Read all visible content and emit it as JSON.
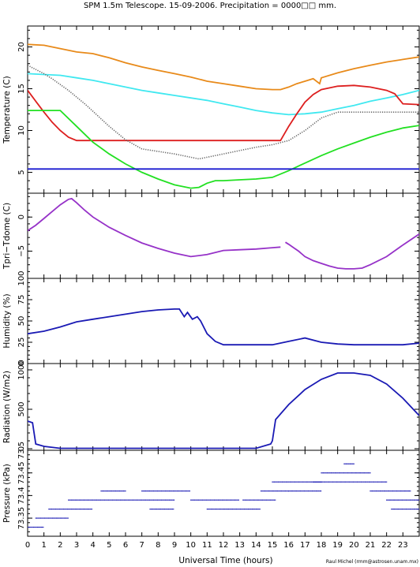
{
  "title": "SPM 1.5m Telescope. 15-09-2006. Precipitation = 0000□□ mm.",
  "xlabel": "Universal Time (hours)",
  "credit": "Raul Michel (rmm@astrosen.unam.mx)",
  "xlim": [
    0,
    24
  ],
  "xticks": [
    "0",
    "1",
    "2",
    "3",
    "4",
    "5",
    "6",
    "7",
    "8",
    "9",
    "10",
    "11",
    "12",
    "13",
    "14",
    "15",
    "16",
    "17",
    "18",
    "19",
    "20",
    "21",
    "22",
    "23"
  ],
  "chart_data": [
    {
      "type": "line",
      "ylabel": "Temperature (C)",
      "ylim": [
        2.5,
        22.5
      ],
      "yticks": [
        "5",
        "10",
        "15",
        "20"
      ],
      "series": [
        {
          "color": "#e88a1a",
          "x": [
            0,
            1,
            2,
            3,
            4,
            5,
            6,
            7,
            8,
            9,
            10,
            11,
            12,
            13,
            14,
            15,
            15.5,
            16,
            16.5,
            17,
            17.5,
            17.9,
            18,
            19,
            20,
            21,
            22,
            23,
            24
          ],
          "y": [
            20.3,
            20.2,
            19.8,
            19.4,
            19.2,
            18.7,
            18.1,
            17.6,
            17.2,
            16.8,
            16.4,
            15.9,
            15.6,
            15.3,
            15.0,
            14.9,
            14.9,
            15.2,
            15.6,
            15.9,
            16.2,
            15.6,
            16.3,
            16.9,
            17.4,
            17.8,
            18.2,
            18.5,
            18.8
          ]
        },
        {
          "color": "#40e8f0",
          "x": [
            0,
            1,
            2,
            3,
            4,
            5,
            6,
            7,
            8,
            9,
            10,
            11,
            12,
            13,
            14,
            15,
            16,
            17,
            18,
            19,
            20,
            21,
            22,
            23,
            24
          ],
          "y": [
            16.8,
            16.7,
            16.6,
            16.3,
            16.0,
            15.6,
            15.2,
            14.8,
            14.5,
            14.2,
            13.9,
            13.6,
            13.2,
            12.8,
            12.4,
            12.1,
            11.9,
            12.0,
            12.2,
            12.6,
            13.0,
            13.5,
            13.9,
            14.3,
            14.8
          ]
        },
        {
          "color": "#dd1f1f",
          "x": [
            0,
            0.5,
            1,
            1.5,
            2,
            2.5,
            3,
            4,
            5,
            6,
            7,
            8,
            9,
            10,
            11,
            12,
            13,
            14,
            15,
            15.5,
            16,
            16.5,
            17,
            17.5,
            18,
            19,
            20,
            21,
            22,
            22.5,
            23,
            24
          ],
          "y": [
            14.8,
            13.5,
            12.2,
            11.0,
            10.0,
            9.2,
            8.8,
            8.8,
            8.8,
            8.8,
            8.8,
            8.8,
            8.8,
            8.8,
            8.8,
            8.8,
            8.8,
            8.8,
            8.8,
            8.8,
            10.5,
            12.0,
            13.4,
            14.3,
            14.9,
            15.3,
            15.4,
            15.2,
            14.8,
            14.4,
            13.2,
            13.1
          ]
        },
        {
          "color": "#646464",
          "x": [
            0,
            0.5,
            1,
            1.5,
            2,
            2.5,
            3,
            3.5,
            4,
            5,
            6,
            7,
            8,
            9,
            10,
            10.5,
            11,
            12,
            13,
            14,
            15,
            16,
            17,
            18,
            19,
            20,
            21,
            22,
            23,
            24
          ],
          "y": [
            17.8,
            17.3,
            16.8,
            16.2,
            15.5,
            14.8,
            14.0,
            13.2,
            12.3,
            10.5,
            8.9,
            7.8,
            7.5,
            7.2,
            6.8,
            6.6,
            6.8,
            7.2,
            7.6,
            8.0,
            8.3,
            8.8,
            10.0,
            11.5,
            12.2,
            12.2,
            12.2,
            12.2,
            12.2,
            12.2
          ]
        },
        {
          "color": "#22e022",
          "x": [
            0,
            1,
            2,
            3,
            4,
            5,
            6,
            7,
            8,
            9,
            10,
            10.5,
            11,
            11.5,
            12,
            13,
            14,
            15,
            16,
            17,
            18,
            19,
            20,
            21,
            22,
            23,
            24
          ],
          "y": [
            12.4,
            12.4,
            12.4,
            10.5,
            8.6,
            7.2,
            6.0,
            5.0,
            4.2,
            3.5,
            3.1,
            3.2,
            3.7,
            4.0,
            4.0,
            4.1,
            4.2,
            4.4,
            5.2,
            6.1,
            7.0,
            7.8,
            8.5,
            9.2,
            9.8,
            10.3,
            10.6
          ]
        },
        {
          "color": "#1a1ad0",
          "x": [
            0,
            24
          ],
          "y": [
            5.4,
            5.4
          ]
        }
      ]
    },
    {
      "type": "line",
      "ylabel": "Tpri−Tdome (C)",
      "ylim": [
        -9,
        3.5
      ],
      "yticks": [
        "−5",
        "0"
      ],
      "series": [
        {
          "color": "#9632c8",
          "x": [
            0,
            0.5,
            1,
            1.5,
            2,
            2.5,
            2.7,
            3,
            3.5,
            4,
            5,
            6,
            7,
            8,
            9,
            10,
            11,
            12,
            13,
            14,
            15,
            15.5
          ],
          "y": [
            -2.0,
            -1.2,
            -0.2,
            0.8,
            1.8,
            2.6,
            2.7,
            2.1,
            1.0,
            0.0,
            -1.5,
            -2.7,
            -3.8,
            -4.6,
            -5.3,
            -5.8,
            -5.5,
            -4.9,
            -4.8,
            -4.7,
            -4.5,
            -4.4
          ]
        },
        {
          "color": "#9632c8",
          "x": [
            15.8,
            16,
            16.3,
            16.6,
            17,
            17.5,
            18,
            18.5,
            19,
            19.5,
            20,
            20.5,
            21,
            22,
            23,
            24
          ],
          "y": [
            -3.7,
            -4.0,
            -4.5,
            -5.0,
            -5.8,
            -6.4,
            -6.8,
            -7.2,
            -7.5,
            -7.6,
            -7.6,
            -7.5,
            -7.0,
            -5.8,
            -4.1,
            -2.5
          ]
        }
      ]
    },
    {
      "type": "line",
      "ylabel": "Humidity (%)",
      "ylim": [
        0,
        100
      ],
      "yticks": [
        "0",
        "25",
        "50",
        "75",
        "100"
      ],
      "series": [
        {
          "color": "#1a1ab4",
          "x": [
            0,
            1,
            2,
            3,
            4,
            5,
            6,
            7,
            8,
            9,
            9.3,
            9.6,
            9.8,
            10.1,
            10.4,
            10.6,
            11,
            11.5,
            12,
            13,
            14,
            15,
            16,
            17,
            18,
            19,
            20,
            21,
            22,
            23,
            24
          ],
          "y": [
            35,
            38,
            43,
            49,
            52,
            55,
            58,
            61,
            63,
            64,
            64,
            55,
            60,
            52,
            55,
            50,
            35,
            26,
            22,
            22,
            22,
            22,
            26,
            30,
            25,
            23,
            22,
            22,
            22,
            22,
            24
          ]
        }
      ]
    },
    {
      "type": "line",
      "ylabel": "Radiation (W/m2)",
      "ylim": [
        -20,
        1080
      ],
      "yticks": [
        "0",
        "500",
        "1000"
      ],
      "series": [
        {
          "color": "#1a1ab4",
          "x": [
            0,
            0.3,
            0.5,
            1,
            2,
            4,
            6,
            8,
            10,
            12,
            14,
            14.9,
            15,
            15.2,
            16,
            17,
            18,
            19,
            20,
            21,
            22,
            23,
            24
          ],
          "y": [
            350,
            330,
            60,
            30,
            5,
            5,
            5,
            5,
            5,
            5,
            5,
            60,
            100,
            370,
            560,
            750,
            880,
            960,
            960,
            930,
            820,
            640,
            420
          ]
        }
      ]
    },
    {
      "type": "scatter",
      "ylabel": "Pressure (kPa)",
      "ylim": [
        73.31,
        73.5
      ],
      "yticks": [
        "73.3",
        "73.35",
        "73.4",
        "73.45",
        "73.5"
      ],
      "ytick_values": [
        73.3,
        73.35,
        73.4,
        73.45,
        73.5
      ],
      "series": [
        {
          "color": "#1a1ab4",
          "name": "",
          "segments": [
            [
              0,
              1,
              73.33
            ],
            [
              0.5,
              2.5,
              73.35
            ],
            [
              1.3,
              4,
              73.37
            ],
            [
              2.5,
              9,
              73.39
            ],
            [
              4.5,
              6,
              73.41
            ],
            [
              7,
              10,
              73.41
            ],
            [
              7.5,
              9,
              73.37
            ],
            [
              10,
              13,
              73.39
            ],
            [
              11,
              14.3,
              73.37
            ],
            [
              13.2,
              15.2,
              73.39
            ],
            [
              14.3,
              16,
              73.41
            ],
            [
              15,
              18,
              73.43
            ],
            [
              16,
              18,
              73.41
            ],
            [
              18,
              21,
              73.45
            ],
            [
              17.5,
              22,
              73.43
            ],
            [
              21,
              23.5,
              73.41
            ],
            [
              22,
              24,
              73.39
            ],
            [
              19.4,
              20,
              73.47
            ],
            [
              22.3,
              24,
              73.37
            ]
          ]
        }
      ]
    }
  ]
}
